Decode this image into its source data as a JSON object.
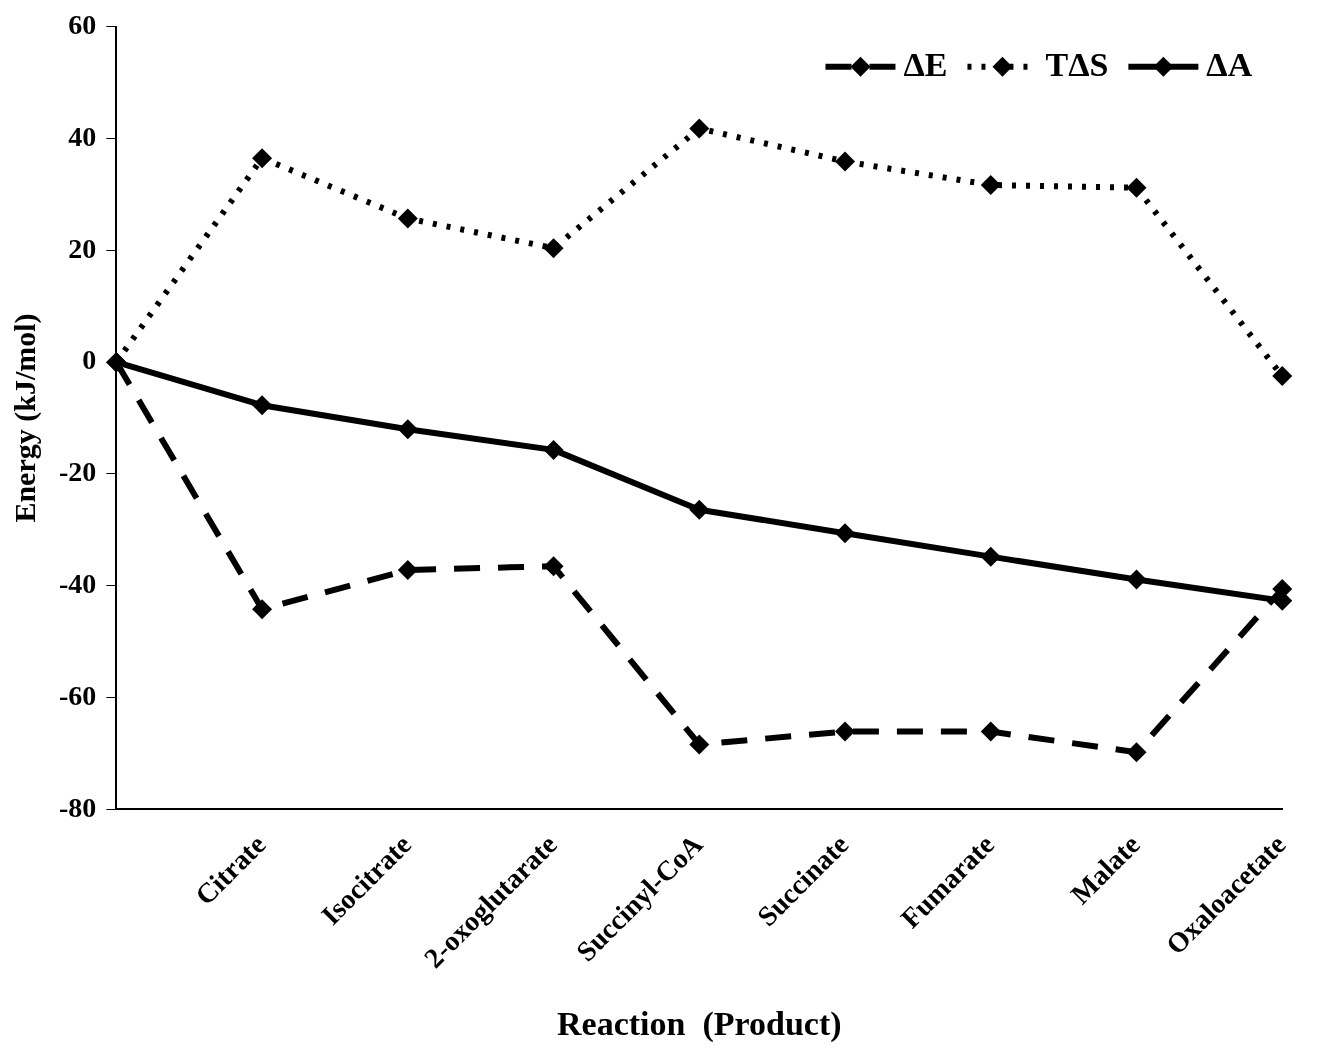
{
  "chart_data": {
    "type": "line",
    "xlabel": "Reaction  (Product)",
    "ylabel": "Energy (kJ/mol)",
    "categories": [
      null,
      "Citrate",
      "Isocitrate",
      "2-oxoglutarate",
      "Succinyl-CoA",
      "Succinate",
      "Fumarate",
      "Malate",
      "Oxaloacetate"
    ],
    "series": [
      {
        "name": "ΔE",
        "color": "#000000",
        "line_style": "dashed",
        "values": [
          0,
          -44.2,
          -37.2,
          -36.5,
          -68.4,
          -66.1,
          -66.1,
          -69.8,
          -40.6
        ]
      },
      {
        "name": "TΔS",
        "color": "#000000",
        "line_style": "dotted",
        "values": [
          0,
          36.5,
          25.7,
          20.4,
          41.8,
          35.9,
          31.7,
          31.2,
          -2.5
        ]
      },
      {
        "name": "ΔA",
        "color": "#000000",
        "line_style": "solid",
        "values": [
          0,
          -7.7,
          -12,
          -15.7,
          -26.4,
          -30.6,
          -34.8,
          -38.9,
          -42.7
        ]
      }
    ],
    "ylim": [
      -80,
      60
    ],
    "yticks": [
      -80,
      -60,
      -40,
      -20,
      0,
      20,
      40,
      60
    ],
    "grid": false,
    "legend": "top right",
    "marker": "diamond"
  }
}
